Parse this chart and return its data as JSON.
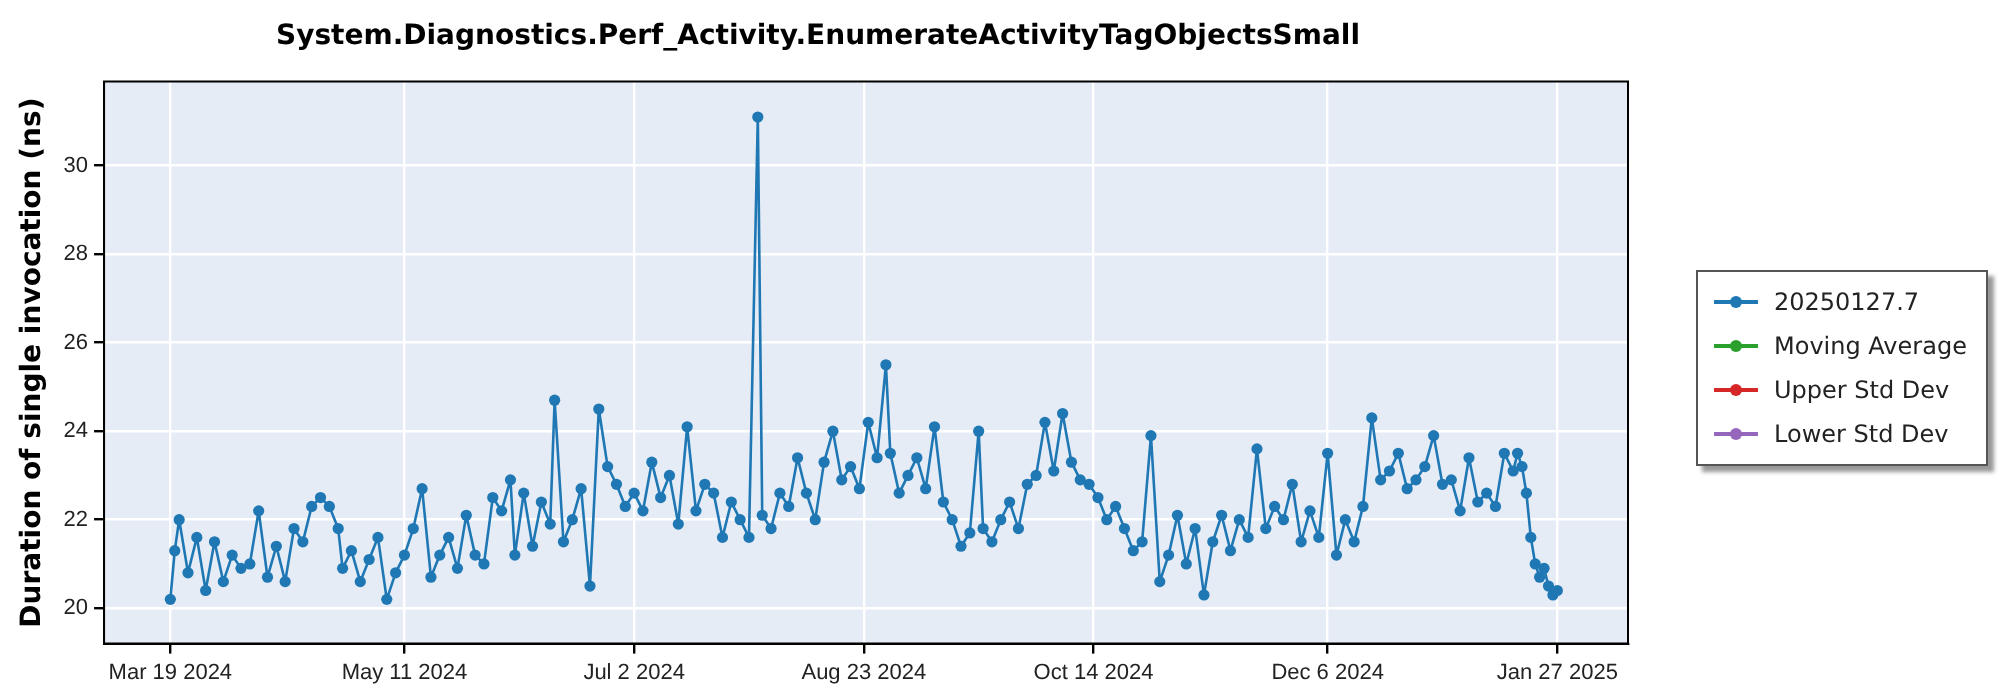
{
  "chart_data": {
    "type": "line",
    "title": "System.Diagnostics.Perf_Activity.EnumerateActivityTagObjectsSmall",
    "ylabel": "Duration of single invocation (ns)",
    "xlim": [
      "2024-03-04",
      "2025-02-12"
    ],
    "xticks": [
      {
        "value": "2024-03-19",
        "label": "Mar 19 2024"
      },
      {
        "value": "2024-05-11",
        "label": "May 11 2024"
      },
      {
        "value": "2024-07-02",
        "label": "Jul 2 2024"
      },
      {
        "value": "2024-08-23",
        "label": "Aug 23 2024"
      },
      {
        "value": "2024-10-14",
        "label": "Oct 14 2024"
      },
      {
        "value": "2024-12-06",
        "label": "Dec 6 2024"
      },
      {
        "value": "2025-01-27",
        "label": "Jan 27 2025"
      }
    ],
    "ylim": [
      19.2,
      31.9
    ],
    "yticks": [
      20,
      22,
      24,
      26,
      28,
      30
    ],
    "grid": true,
    "legend": "right",
    "marker": "circle",
    "line_style": "solid",
    "series": [
      {
        "name": "20250127.7",
        "color": "#1f77b4",
        "x": [
          "2024-03-19",
          "2024-03-20",
          "2024-03-21",
          "2024-03-23",
          "2024-03-25",
          "2024-03-27",
          "2024-03-29",
          "2024-03-31",
          "2024-04-02",
          "2024-04-04",
          "2024-04-06",
          "2024-04-08",
          "2024-04-10",
          "2024-04-12",
          "2024-04-14",
          "2024-04-16",
          "2024-04-18",
          "2024-04-20",
          "2024-04-22",
          "2024-04-24",
          "2024-04-26",
          "2024-04-27",
          "2024-04-29",
          "2024-05-01",
          "2024-05-03",
          "2024-05-05",
          "2024-05-07",
          "2024-05-09",
          "2024-05-11",
          "2024-05-13",
          "2024-05-15",
          "2024-05-17",
          "2024-05-19",
          "2024-05-21",
          "2024-05-23",
          "2024-05-25",
          "2024-05-27",
          "2024-05-29",
          "2024-05-31",
          "2024-06-02",
          "2024-06-04",
          "2024-06-05",
          "2024-06-07",
          "2024-06-09",
          "2024-06-11",
          "2024-06-13",
          "2024-06-14",
          "2024-06-16",
          "2024-06-18",
          "2024-06-20",
          "2024-06-22",
          "2024-06-24",
          "2024-06-26",
          "2024-06-28",
          "2024-06-30",
          "2024-07-02",
          "2024-07-04",
          "2024-07-06",
          "2024-07-08",
          "2024-07-10",
          "2024-07-12",
          "2024-07-14",
          "2024-07-16",
          "2024-07-18",
          "2024-07-20",
          "2024-07-22",
          "2024-07-24",
          "2024-07-26",
          "2024-07-28",
          "2024-07-30",
          "2024-07-31",
          "2024-08-02",
          "2024-08-04",
          "2024-08-06",
          "2024-08-08",
          "2024-08-10",
          "2024-08-12",
          "2024-08-14",
          "2024-08-16",
          "2024-08-18",
          "2024-08-20",
          "2024-08-22",
          "2024-08-24",
          "2024-08-26",
          "2024-08-28",
          "2024-08-29",
          "2024-08-31",
          "2024-09-02",
          "2024-09-04",
          "2024-09-06",
          "2024-09-08",
          "2024-09-10",
          "2024-09-12",
          "2024-09-14",
          "2024-09-16",
          "2024-09-18",
          "2024-09-19",
          "2024-09-21",
          "2024-09-23",
          "2024-09-25",
          "2024-09-27",
          "2024-09-29",
          "2024-10-01",
          "2024-10-03",
          "2024-10-05",
          "2024-10-07",
          "2024-10-09",
          "2024-10-11",
          "2024-10-13",
          "2024-10-15",
          "2024-10-17",
          "2024-10-19",
          "2024-10-21",
          "2024-10-23",
          "2024-10-25",
          "2024-10-27",
          "2024-10-29",
          "2024-10-31",
          "2024-11-02",
          "2024-11-04",
          "2024-11-06",
          "2024-11-08",
          "2024-11-10",
          "2024-11-12",
          "2024-11-14",
          "2024-11-16",
          "2024-11-18",
          "2024-11-20",
          "2024-11-22",
          "2024-11-24",
          "2024-11-26",
          "2024-11-28",
          "2024-11-30",
          "2024-12-02",
          "2024-12-04",
          "2024-12-06",
          "2024-12-08",
          "2024-12-10",
          "2024-12-12",
          "2024-12-14",
          "2024-12-16",
          "2024-12-18",
          "2024-12-20",
          "2024-12-22",
          "2024-12-24",
          "2024-12-26",
          "2024-12-28",
          "2024-12-30",
          "2025-01-01",
          "2025-01-03",
          "2025-01-05",
          "2025-01-07",
          "2025-01-09",
          "2025-01-11",
          "2025-01-13",
          "2025-01-15",
          "2025-01-17",
          "2025-01-18",
          "2025-01-19",
          "2025-01-20",
          "2025-01-21",
          "2025-01-22",
          "2025-01-23",
          "2025-01-24",
          "2025-01-25",
          "2025-01-26",
          "2025-01-27"
        ],
        "values": [
          20.2,
          21.3,
          22.0,
          20.8,
          21.6,
          20.4,
          21.5,
          20.6,
          21.2,
          20.9,
          21.0,
          22.2,
          20.7,
          21.4,
          20.6,
          21.8,
          21.5,
          22.3,
          22.5,
          22.3,
          21.8,
          20.9,
          21.3,
          20.6,
          21.1,
          21.6,
          20.2,
          20.8,
          21.2,
          21.8,
          22.7,
          20.7,
          21.2,
          21.6,
          20.9,
          22.1,
          21.2,
          21.0,
          22.5,
          22.2,
          22.9,
          21.2,
          22.6,
          21.4,
          22.4,
          21.9,
          24.7,
          21.5,
          22.0,
          22.7,
          20.5,
          24.5,
          23.2,
          22.8,
          22.3,
          22.6,
          22.2,
          23.3,
          22.5,
          23.0,
          21.9,
          24.1,
          22.2,
          22.8,
          22.6,
          21.6,
          22.4,
          22.0,
          21.6,
          31.1,
          22.1,
          21.8,
          22.6,
          22.3,
          23.4,
          22.6,
          22.0,
          23.3,
          24.0,
          22.9,
          23.2,
          22.7,
          24.2,
          23.4,
          25.5,
          23.5,
          22.6,
          23.0,
          23.4,
          22.7,
          24.1,
          22.4,
          22.0,
          21.4,
          21.7,
          24.0,
          21.8,
          21.5,
          22.0,
          22.4,
          21.8,
          22.8,
          23.0,
          24.2,
          23.1,
          24.4,
          23.3,
          22.9,
          22.8,
          22.5,
          22.0,
          22.3,
          21.8,
          21.3,
          21.5,
          23.9,
          20.6,
          21.2,
          22.1,
          21.0,
          21.8,
          20.3,
          21.5,
          22.1,
          21.3,
          22.0,
          21.6,
          23.6,
          21.8,
          22.3,
          22.0,
          22.8,
          21.5,
          22.2,
          21.6,
          23.5,
          21.2,
          22.0,
          21.5,
          22.3,
          24.3,
          22.9,
          23.1,
          23.5,
          22.7,
          22.9,
          23.2,
          23.9,
          22.8,
          22.9,
          22.2,
          23.4,
          22.4,
          22.6,
          22.3,
          23.5,
          23.1,
          23.5,
          23.2,
          22.6,
          21.6,
          21.0,
          20.7,
          20.9,
          20.5,
          20.3,
          20.4
        ]
      },
      {
        "name": "Moving Average",
        "color": "#2ca02c"
      },
      {
        "name": "Upper Std Dev",
        "color": "#d62728"
      },
      {
        "name": "Lower Std Dev",
        "color": "#9467bd"
      }
    ]
  }
}
